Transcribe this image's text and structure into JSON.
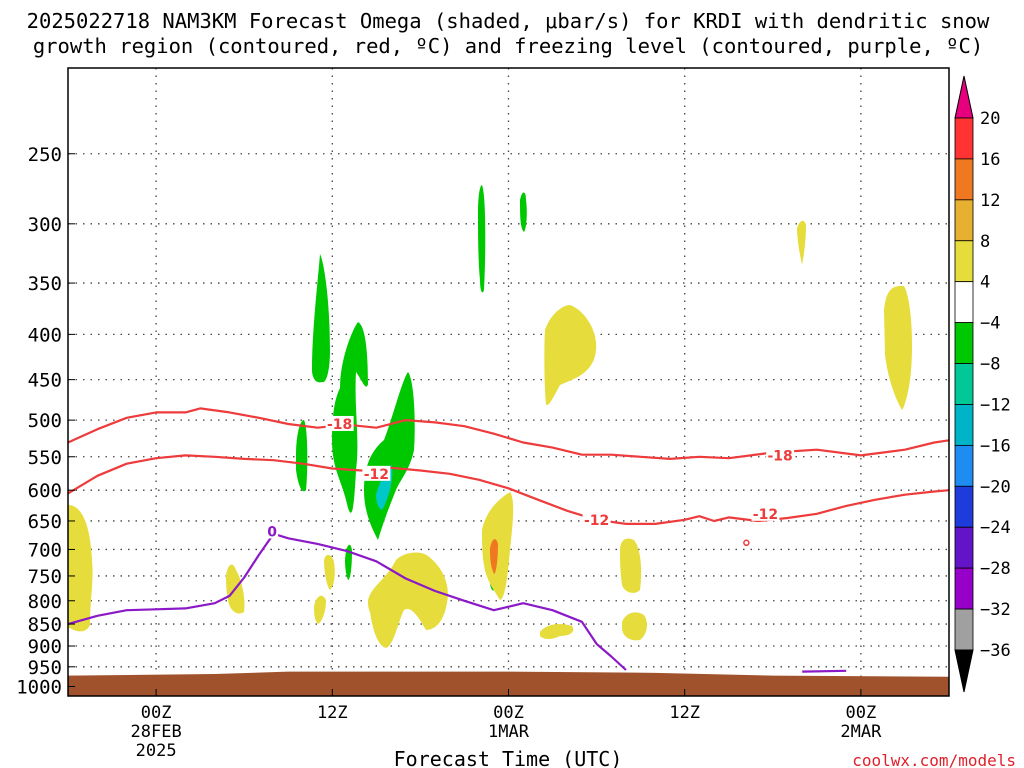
{
  "chart_data": {
    "type": "contour",
    "title_line1": "2025022718 NAM3KM Forecast Omega (shaded, μbar/s) for KRDI with dendritic snow",
    "title_line2": "growth region (contoured, red, ºC) and freezing level (contoured, purple, ºC)",
    "xlabel": "Forecast Time (UTC)",
    "credit": "coolwx.com/models",
    "x_ticks": [
      {
        "hour": 6,
        "lines": [
          "00Z",
          "28FEB",
          "2025"
        ]
      },
      {
        "hour": 18,
        "lines": [
          "12Z"
        ]
      },
      {
        "hour": 30,
        "lines": [
          "00Z",
          "1MAR"
        ]
      },
      {
        "hour": 42,
        "lines": [
          "12Z"
        ]
      },
      {
        "hour": 54,
        "lines": [
          "00Z",
          "2MAR"
        ]
      }
    ],
    "y_ticks": [
      250,
      300,
      350,
      400,
      450,
      500,
      550,
      600,
      650,
      700,
      750,
      800,
      850,
      900,
      950,
      1000
    ],
    "x_range_hours": [
      0,
      60
    ],
    "y_range_hpa": [
      200,
      1025
    ],
    "y_scale": "log-pressure",
    "grid": "dotted",
    "colorbar": {
      "labels": [
        "20",
        "16",
        "12",
        "8",
        "4",
        "−4",
        "−8",
        "−12",
        "−16",
        "−20",
        "−24",
        "−28",
        "−32",
        "−36"
      ],
      "colors": [
        "#ff3333",
        "#f07820",
        "#e8b030",
        "#e6dd3c",
        "#ffffff",
        "#00c800",
        "#00c896",
        "#00b4c8",
        "#1e8cf0",
        "#1e3cdc",
        "#6414c8",
        "#9600c8",
        "#a0a0a0"
      ],
      "top_cap": "#e6007e",
      "bottom_cap": "#000000"
    },
    "contours": {
      "dgz": {
        "color": "#ee3b3b",
        "labels": [
          "-18",
          "-12",
          "-12",
          "-18",
          "-12"
        ],
        "upper_neg18": [
          [
            0,
            530
          ],
          [
            2,
            512
          ],
          [
            4,
            497
          ],
          [
            6,
            490
          ],
          [
            8,
            490
          ],
          [
            9,
            485
          ],
          [
            11,
            490
          ],
          [
            13,
            497
          ],
          [
            15,
            505
          ],
          [
            17,
            510
          ],
          [
            19,
            506
          ],
          [
            21,
            510
          ],
          [
            23,
            500
          ],
          [
            25,
            503
          ],
          [
            27,
            508
          ],
          [
            29,
            518
          ],
          [
            31,
            530
          ],
          [
            33,
            537
          ],
          [
            35,
            547
          ],
          [
            37,
            547
          ],
          [
            39,
            550
          ],
          [
            41,
            553
          ],
          [
            43,
            550
          ],
          [
            45,
            552
          ],
          [
            48,
            544
          ],
          [
            51,
            540
          ],
          [
            54,
            548
          ],
          [
            57,
            540
          ],
          [
            59,
            530
          ],
          [
            60,
            527
          ]
        ],
        "lower_neg12": [
          [
            0,
            605
          ],
          [
            2,
            578
          ],
          [
            4,
            560
          ],
          [
            6,
            552
          ],
          [
            8,
            548
          ],
          [
            10,
            550
          ],
          [
            12,
            553
          ],
          [
            14,
            555
          ],
          [
            16,
            560
          ],
          [
            18,
            567
          ],
          [
            20,
            570
          ],
          [
            22,
            566
          ],
          [
            24,
            570
          ],
          [
            26,
            575
          ],
          [
            28,
            584
          ],
          [
            30,
            597
          ],
          [
            32,
            615
          ],
          [
            34,
            633
          ],
          [
            36,
            648
          ],
          [
            38,
            655
          ],
          [
            40,
            655
          ],
          [
            42,
            648
          ],
          [
            43,
            642
          ],
          [
            44,
            650
          ],
          [
            45,
            644
          ],
          [
            47,
            650
          ],
          [
            49,
            645
          ],
          [
            51,
            638
          ],
          [
            53,
            625
          ],
          [
            55,
            615
          ],
          [
            57,
            607
          ],
          [
            59,
            602
          ],
          [
            60,
            600
          ]
        ]
      },
      "freezing_level": {
        "color": "#8b19c7",
        "label": "0",
        "points": [
          [
            0,
            850
          ],
          [
            2,
            832
          ],
          [
            4,
            820
          ],
          [
            6,
            818
          ],
          [
            8,
            816
          ],
          [
            10,
            805
          ],
          [
            11,
            790
          ],
          [
            12,
            753
          ],
          [
            13,
            710
          ],
          [
            14,
            672
          ],
          [
            15,
            680
          ],
          [
            17,
            690
          ],
          [
            19,
            703
          ],
          [
            21,
            722
          ],
          [
            23,
            755
          ],
          [
            25,
            780
          ],
          [
            27,
            800
          ],
          [
            29,
            820
          ],
          [
            31,
            805
          ],
          [
            33,
            820
          ],
          [
            35,
            845
          ],
          [
            36,
            895
          ],
          [
            37,
            925
          ],
          [
            38,
            958
          ]
        ],
        "segment2": [
          [
            50,
            962
          ],
          [
            53,
            960
          ]
        ]
      }
    },
    "surface_pressure_hpa": [
      [
        0,
        972
      ],
      [
        10,
        968
      ],
      [
        15,
        962
      ],
      [
        30,
        962
      ],
      [
        40,
        965
      ],
      [
        48,
        972
      ],
      [
        60,
        975
      ]
    ]
  }
}
